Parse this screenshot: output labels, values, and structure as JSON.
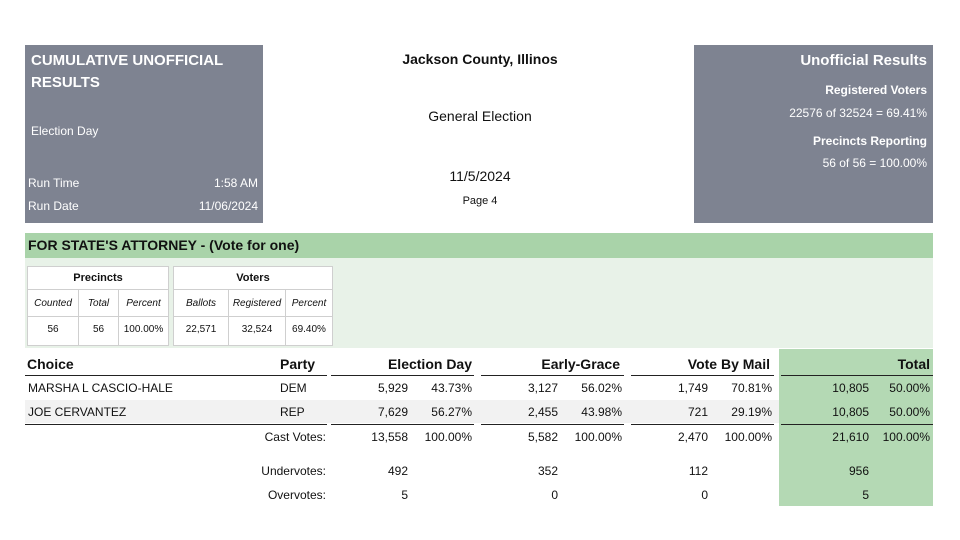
{
  "left_box": {
    "title": "CUMULATIVE UNOFFICIAL RESULTS",
    "subtitle": "Election Day",
    "run_time_label": "Run Time",
    "run_time_value": "1:58 AM",
    "run_date_label": "Run Date",
    "run_date_value": "11/06/2024"
  },
  "header": {
    "county": "Jackson County, Illinos",
    "election": "General Election",
    "date": "11/5/2024",
    "page": "Page 4"
  },
  "right_box": {
    "title": "Unofficial Results",
    "registered_label": "Registered Voters",
    "registered_value": "22576 of 32524 = 69.41%",
    "precincts_label": "Precincts Reporting",
    "precincts_value": "56 of 56 = 100.00%"
  },
  "contest": {
    "title": "FOR STATE'S ATTORNEY - (Vote for one)",
    "precincts": {
      "header": "Precincts",
      "col_labels": [
        "Counted",
        "Total",
        "Percent"
      ],
      "values": [
        "56",
        "56",
        "100.00%"
      ]
    },
    "voters": {
      "header": "Voters",
      "col_labels": [
        "Ballots",
        "Registered",
        "Percent"
      ],
      "values": [
        "22,571",
        "32,524",
        "69.40%"
      ]
    }
  },
  "results": {
    "headers": {
      "choice": "Choice",
      "party": "Party",
      "election_day": "Election Day",
      "early_grace": "Early-Grace",
      "vote_by_mail": "Vote By Mail",
      "total": "Total"
    },
    "rows": [
      {
        "choice": "MARSHA L CASCIO-HALE",
        "party": "DEM",
        "ed_votes": "5,929",
        "ed_pct": "43.73%",
        "eg_votes": "3,127",
        "eg_pct": "56.02%",
        "vbm_votes": "1,749",
        "vbm_pct": "70.81%",
        "total_votes": "10,805",
        "total_pct": "50.00%"
      },
      {
        "choice": "JOE CERVANTEZ",
        "party": "REP",
        "ed_votes": "7,629",
        "ed_pct": "56.27%",
        "eg_votes": "2,455",
        "eg_pct": "43.98%",
        "vbm_votes": "721",
        "vbm_pct": "29.19%",
        "total_votes": "10,805",
        "total_pct": "50.00%"
      }
    ],
    "cast": {
      "label": "Cast Votes:",
      "ed_votes": "13,558",
      "ed_pct": "100.00%",
      "eg_votes": "5,582",
      "eg_pct": "100.00%",
      "vbm_votes": "2,470",
      "vbm_pct": "100.00%",
      "total_votes": "21,610",
      "total_pct": "100.00%"
    },
    "undervotes": {
      "label": "Undervotes:",
      "ed": "492",
      "eg": "352",
      "vbm": "112",
      "total": "956"
    },
    "overvotes": {
      "label": "Overvotes:",
      "ed": "5",
      "eg": "0",
      "vbm": "0",
      "total": "5"
    }
  }
}
